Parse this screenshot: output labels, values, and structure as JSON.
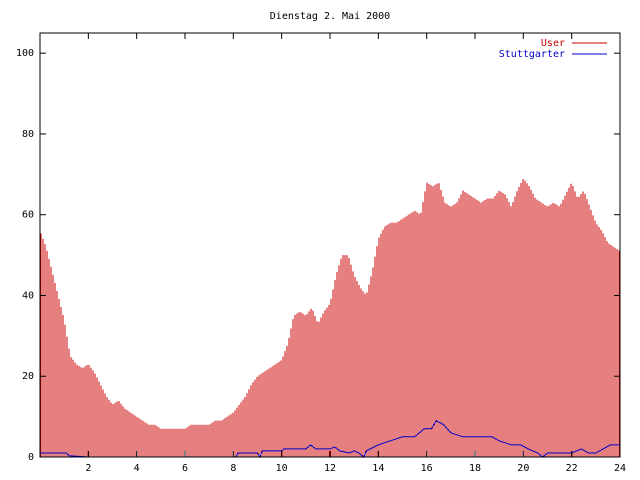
{
  "chart_data": {
    "type": "bar",
    "title": "Dienstag 2. Mai 2000",
    "xlabel": "",
    "ylabel": "",
    "xlim": [
      0,
      24
    ],
    "ylim": [
      0,
      105
    ],
    "xticks": [
      2,
      4,
      6,
      8,
      10,
      12,
      14,
      16,
      18,
      20,
      22,
      24
    ],
    "yticks": [
      0,
      20,
      40,
      60,
      80,
      100
    ],
    "grid": false,
    "legend_position": "top-right",
    "series": [
      {
        "name": "User",
        "color": "#cc0000",
        "style": "impulses",
        "points": [
          [
            0.0,
            56
          ],
          [
            0.25,
            52
          ],
          [
            0.5,
            46
          ],
          [
            0.75,
            40
          ],
          [
            1.0,
            34
          ],
          [
            1.25,
            25
          ],
          [
            1.5,
            23
          ],
          [
            1.75,
            22
          ],
          [
            2.0,
            23
          ],
          [
            2.25,
            21
          ],
          [
            2.5,
            18
          ],
          [
            2.75,
            15
          ],
          [
            3.0,
            13
          ],
          [
            3.25,
            14
          ],
          [
            3.5,
            12
          ],
          [
            3.75,
            11
          ],
          [
            4.0,
            10
          ],
          [
            4.25,
            9
          ],
          [
            4.5,
            8
          ],
          [
            4.75,
            8
          ],
          [
            5.0,
            7
          ],
          [
            5.25,
            7
          ],
          [
            5.5,
            7
          ],
          [
            5.75,
            7
          ],
          [
            6.0,
            7
          ],
          [
            6.25,
            8
          ],
          [
            6.5,
            8
          ],
          [
            6.75,
            8
          ],
          [
            7.0,
            8
          ],
          [
            7.25,
            9
          ],
          [
            7.5,
            9
          ],
          [
            7.75,
            10
          ],
          [
            8.0,
            11
          ],
          [
            8.25,
            13
          ],
          [
            8.5,
            15
          ],
          [
            8.75,
            18
          ],
          [
            9.0,
            20
          ],
          [
            9.25,
            21
          ],
          [
            9.5,
            22
          ],
          [
            9.75,
            23
          ],
          [
            10.0,
            24
          ],
          [
            10.25,
            28
          ],
          [
            10.5,
            35
          ],
          [
            10.75,
            36
          ],
          [
            11.0,
            35
          ],
          [
            11.25,
            37
          ],
          [
            11.5,
            33
          ],
          [
            11.75,
            36
          ],
          [
            12.0,
            38
          ],
          [
            12.25,
            45
          ],
          [
            12.5,
            50
          ],
          [
            12.75,
            50
          ],
          [
            13.0,
            45
          ],
          [
            13.25,
            42
          ],
          [
            13.5,
            40
          ],
          [
            13.75,
            46
          ],
          [
            14.0,
            54
          ],
          [
            14.25,
            57
          ],
          [
            14.5,
            58
          ],
          [
            14.75,
            58
          ],
          [
            15.0,
            59
          ],
          [
            15.25,
            60
          ],
          [
            15.5,
            61
          ],
          [
            15.75,
            60
          ],
          [
            16.0,
            68
          ],
          [
            16.25,
            67
          ],
          [
            16.5,
            68
          ],
          [
            16.75,
            63
          ],
          [
            17.0,
            62
          ],
          [
            17.25,
            63
          ],
          [
            17.5,
            66
          ],
          [
            17.75,
            65
          ],
          [
            18.0,
            64
          ],
          [
            18.25,
            63
          ],
          [
            18.5,
            64
          ],
          [
            18.75,
            64
          ],
          [
            19.0,
            66
          ],
          [
            19.25,
            65
          ],
          [
            19.5,
            62
          ],
          [
            19.75,
            66
          ],
          [
            20.0,
            69
          ],
          [
            20.25,
            67
          ],
          [
            20.5,
            64
          ],
          [
            20.75,
            63
          ],
          [
            21.0,
            62
          ],
          [
            21.25,
            63
          ],
          [
            21.5,
            62
          ],
          [
            21.75,
            65
          ],
          [
            22.0,
            68
          ],
          [
            22.25,
            64
          ],
          [
            22.5,
            66
          ],
          [
            22.75,
            62
          ],
          [
            23.0,
            58
          ],
          [
            23.25,
            56
          ],
          [
            23.5,
            53
          ],
          [
            23.75,
            52
          ],
          [
            24.0,
            51
          ]
        ]
      },
      {
        "name": "Stuttgarter",
        "color": "#0000cc",
        "style": "line",
        "points": [
          [
            0,
            1
          ],
          [
            1.1,
            1
          ],
          [
            1.2,
            0.3
          ],
          [
            2.0,
            0
          ],
          [
            8.1,
            0
          ],
          [
            8.2,
            1
          ],
          [
            9.0,
            1
          ],
          [
            9.1,
            0
          ],
          [
            9.2,
            1.5
          ],
          [
            10.0,
            1.5
          ],
          [
            10.1,
            2
          ],
          [
            11.0,
            2
          ],
          [
            11.2,
            3
          ],
          [
            11.4,
            2
          ],
          [
            12.0,
            2
          ],
          [
            12.2,
            2.5
          ],
          [
            12.4,
            1.5
          ],
          [
            12.8,
            1
          ],
          [
            13.0,
            1.5
          ],
          [
            13.2,
            1
          ],
          [
            13.4,
            0
          ],
          [
            13.5,
            1.5
          ],
          [
            14.0,
            3
          ],
          [
            14.5,
            4
          ],
          [
            15.0,
            5
          ],
          [
            15.5,
            5
          ],
          [
            15.9,
            7
          ],
          [
            16.2,
            7
          ],
          [
            16.4,
            9
          ],
          [
            16.7,
            8
          ],
          [
            17.0,
            6
          ],
          [
            17.5,
            5
          ],
          [
            18.0,
            5
          ],
          [
            18.7,
            5
          ],
          [
            19.0,
            4
          ],
          [
            19.5,
            3
          ],
          [
            19.9,
            3
          ],
          [
            20.2,
            2
          ],
          [
            20.6,
            1
          ],
          [
            20.8,
            0
          ],
          [
            21.0,
            1
          ],
          [
            22.0,
            1
          ],
          [
            22.4,
            2
          ],
          [
            22.7,
            1
          ],
          [
            23.0,
            1
          ],
          [
            23.3,
            2
          ],
          [
            23.6,
            3
          ],
          [
            24.0,
            3
          ]
        ]
      }
    ]
  }
}
